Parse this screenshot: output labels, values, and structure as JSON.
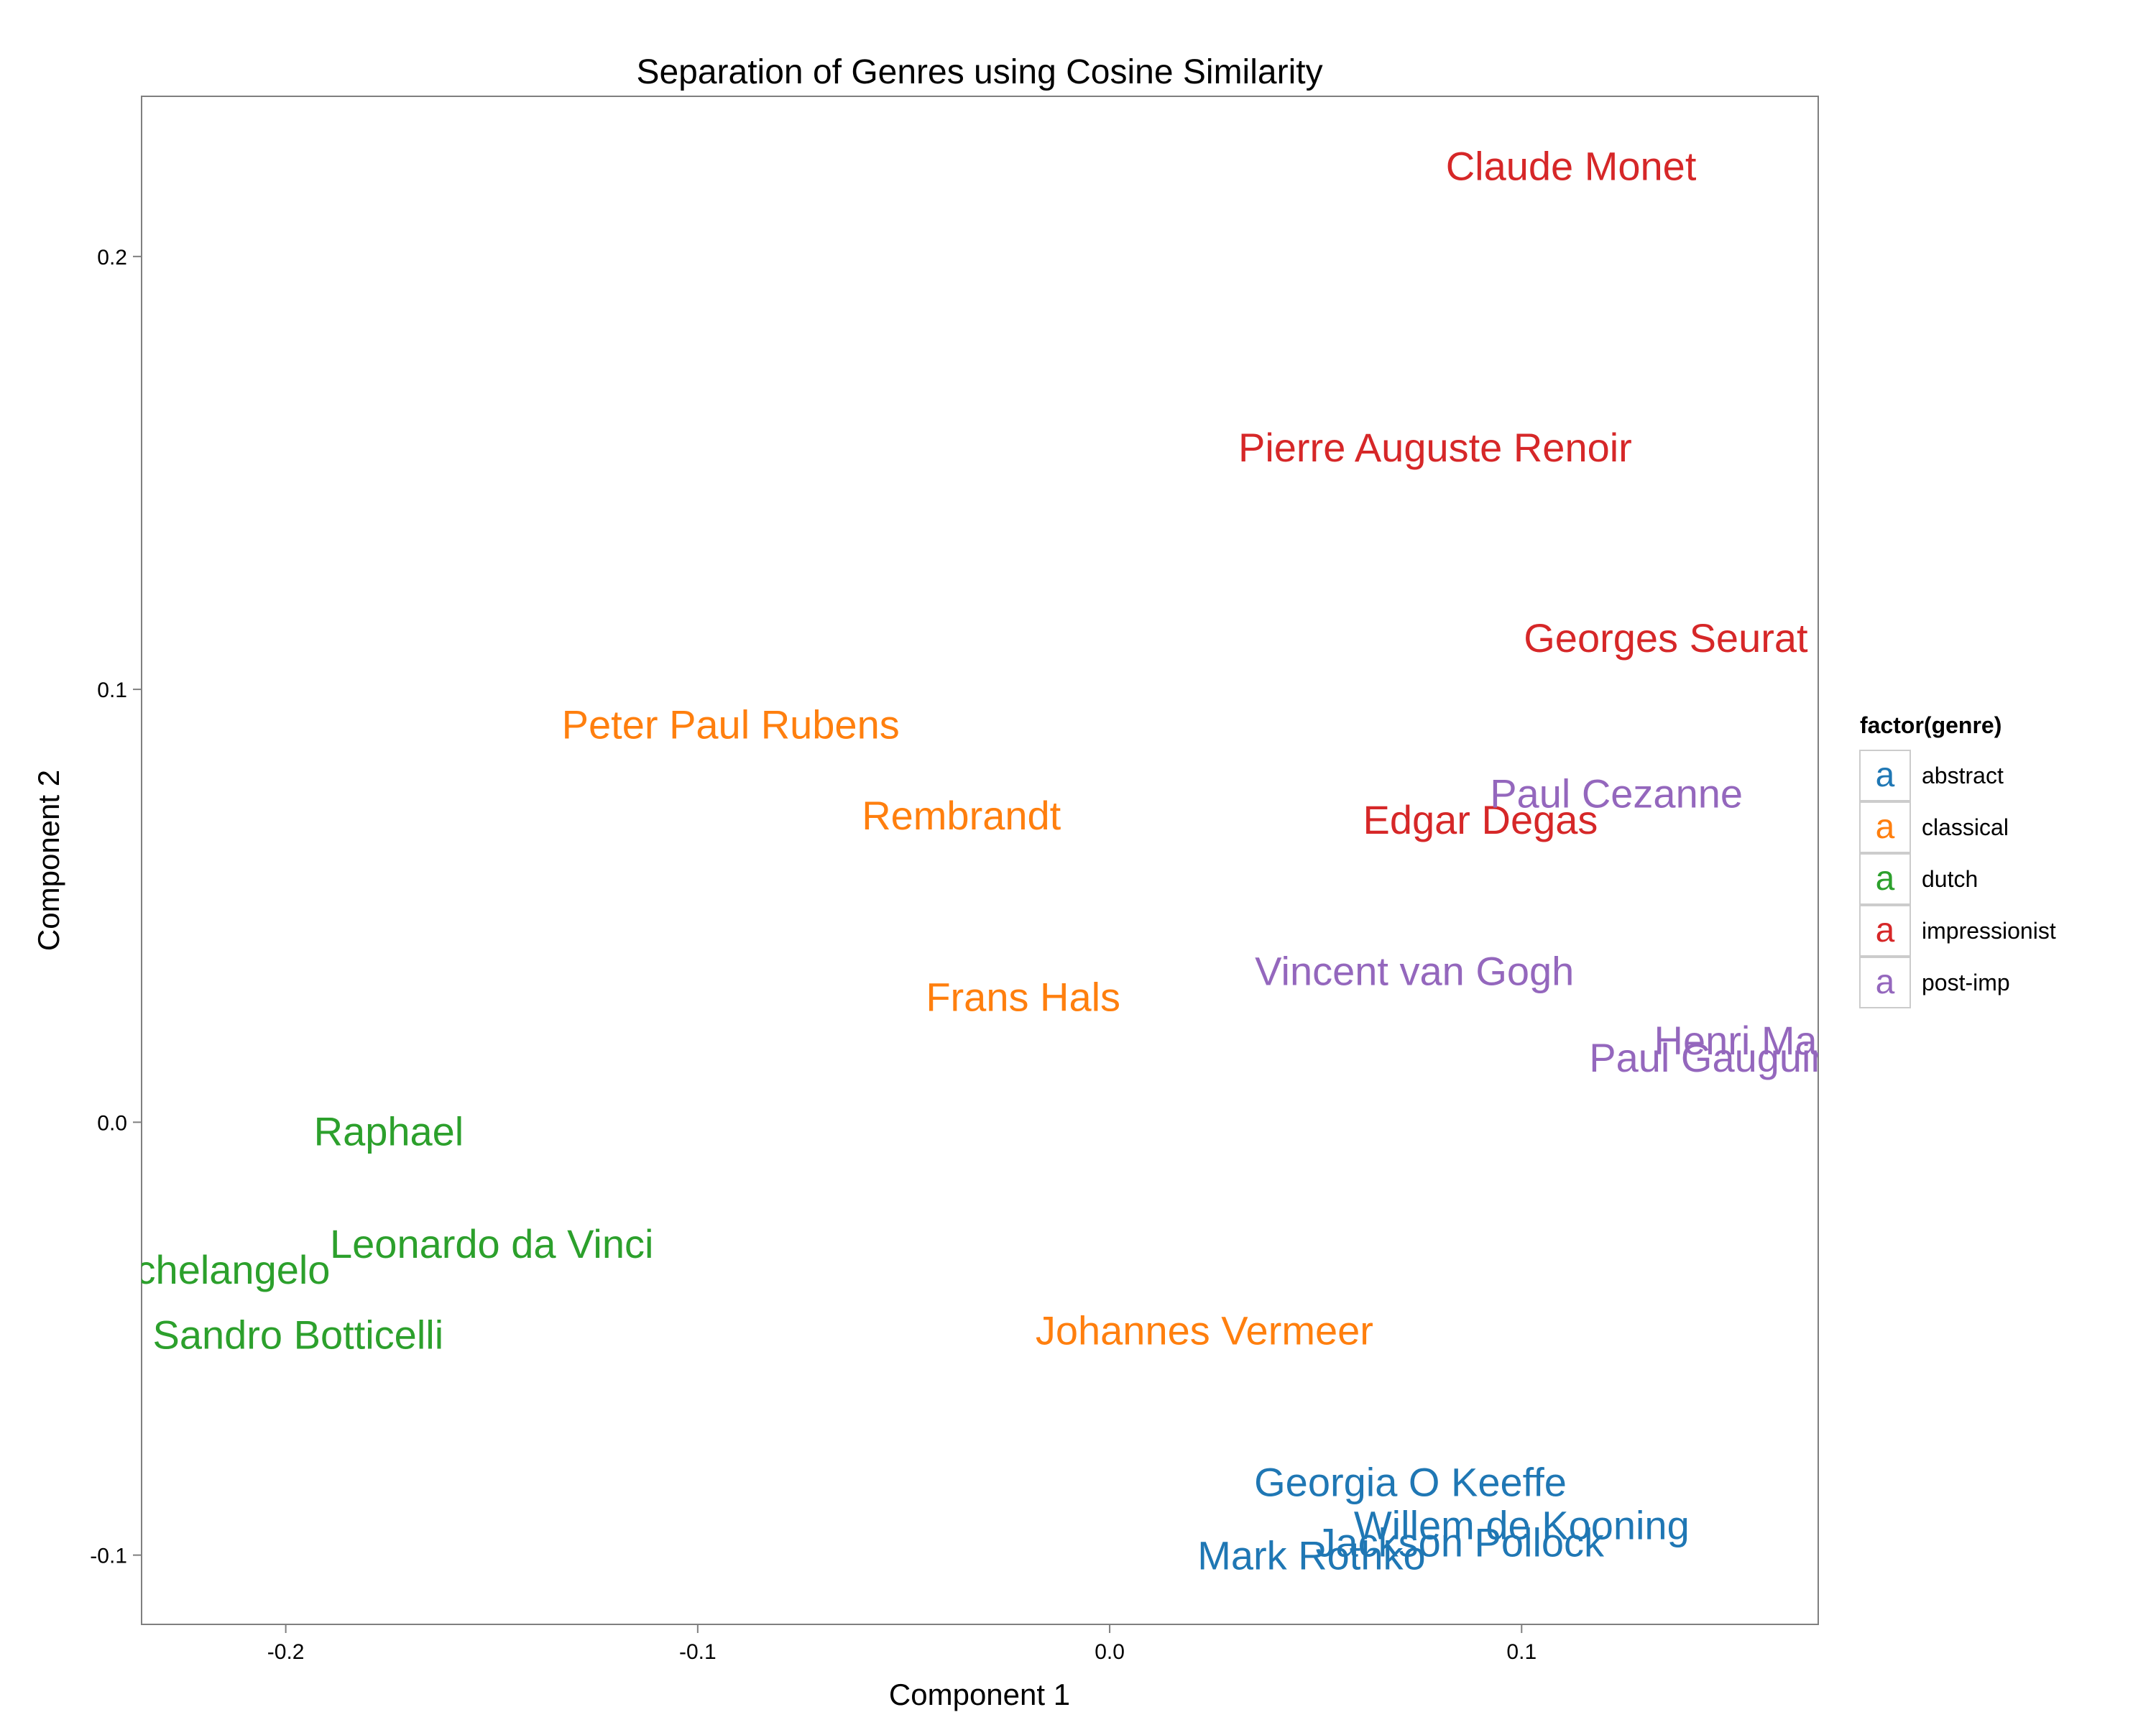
{
  "chart_data": {
    "type": "scatter",
    "title": "Separation of Genres using Cosine Similarity",
    "xlabel": "Component 1",
    "ylabel": "Component 2",
    "xlim": [
      -0.235,
      0.172
    ],
    "ylim": [
      -0.116,
      0.237
    ],
    "x_ticks": [
      -0.2,
      -0.1,
      0.0,
      0.1
    ],
    "y_ticks": [
      -0.1,
      0.0,
      0.1,
      0.2
    ],
    "x_tick_labels": [
      "-0.2",
      "-0.1",
      "0.0",
      "0.1"
    ],
    "y_tick_labels": [
      "-0.1",
      "0.0",
      "0.1",
      "0.2"
    ],
    "grid": false,
    "legend": {
      "title": "factor(genre)",
      "position": "right",
      "glyph": "a",
      "entries": [
        {
          "label": "abstract",
          "color": "#1f77b4"
        },
        {
          "label": "classical",
          "color": "#ff7f0e"
        },
        {
          "label": "dutch",
          "color": "#2ca02c"
        },
        {
          "label": "impressionist",
          "color": "#d62728"
        },
        {
          "label": "post-imp",
          "color": "#9467bd"
        }
      ]
    },
    "points": [
      {
        "label": "Claude Monet",
        "genre": "impressionist",
        "x": 0.112,
        "y": 0.221
      },
      {
        "label": "Pierre Auguste Renoir",
        "genre": "impressionist",
        "x": 0.079,
        "y": 0.156
      },
      {
        "label": "Georges Seurat",
        "genre": "impressionist",
        "x": 0.135,
        "y": 0.112
      },
      {
        "label": "Edgar Degas",
        "genre": "impressionist",
        "x": 0.09,
        "y": 0.07
      },
      {
        "label": "Paul Cezanne",
        "genre": "post-imp",
        "x": 0.123,
        "y": 0.076
      },
      {
        "label": "Vincent van Gogh",
        "genre": "post-imp",
        "x": 0.074,
        "y": 0.035
      },
      {
        "label": "Henri Matisse",
        "genre": "post-imp",
        "x": 0.162,
        "y": 0.019
      },
      {
        "label": "Paul Gauguin",
        "genre": "post-imp",
        "x": 0.146,
        "y": 0.015
      },
      {
        "label": "Peter Paul Rubens",
        "genre": "classical",
        "x": -0.092,
        "y": 0.092
      },
      {
        "label": "Rembrandt",
        "genre": "classical",
        "x": -0.036,
        "y": 0.071
      },
      {
        "label": "Frans Hals",
        "genre": "classical",
        "x": -0.021,
        "y": 0.029
      },
      {
        "label": "Johannes Vermeer",
        "genre": "classical",
        "x": 0.023,
        "y": -0.048
      },
      {
        "label": "Raphael",
        "genre": "dutch",
        "x": -0.175,
        "y": -0.002
      },
      {
        "label": "Leonardo da Vinci",
        "genre": "dutch",
        "x": -0.15,
        "y": -0.028
      },
      {
        "label": "Michelangelo",
        "genre": "dutch",
        "x": -0.218,
        "y": -0.034
      },
      {
        "label": "Sandro Botticelli",
        "genre": "dutch",
        "x": -0.197,
        "y": -0.049
      },
      {
        "label": "Georgia O Keeffe",
        "genre": "abstract",
        "x": 0.073,
        "y": -0.083
      },
      {
        "label": "Willem de Kooning",
        "genre": "abstract",
        "x": 0.1,
        "y": -0.093
      },
      {
        "label": "Jackson Pollock",
        "genre": "abstract",
        "x": 0.085,
        "y": -0.097
      },
      {
        "label": "Mark Rothko",
        "genre": "abstract",
        "x": 0.049,
        "y": -0.1
      }
    ]
  }
}
